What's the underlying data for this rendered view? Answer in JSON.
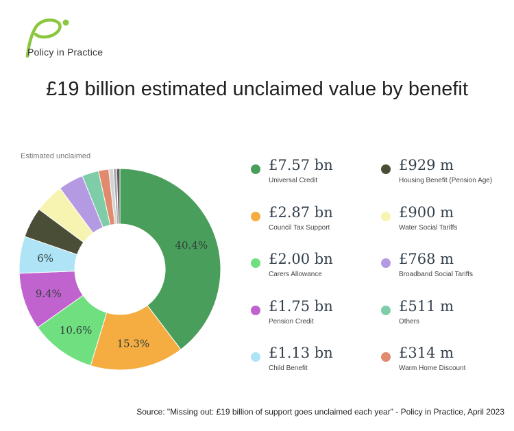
{
  "logo": {
    "text": "Policy in Practice"
  },
  "title": "£19 billion estimated unclaimed value by benefit",
  "source": "Source: \"Missing out: £19 billion of support goes unclaimed each year\" - Policy in Practice, April 2023",
  "chart_data": {
    "type": "pie",
    "subtitle": "Estimated unclaimed",
    "series": [
      {
        "name": "Universal Credit",
        "value_label": "£7.57 bn",
        "value": 7.57,
        "color": "#4a9e5c",
        "slice_label": "40.4%"
      },
      {
        "name": "Council Tax Support",
        "value_label": "£2.87 bn",
        "value": 2.87,
        "color": "#f5ad42",
        "slice_label": "15.3%"
      },
      {
        "name": "Carers Allowance",
        "value_label": "£2.00 bn",
        "value": 2.0,
        "color": "#6fdf7f",
        "slice_label": "10.6%"
      },
      {
        "name": "Pension Credit",
        "value_label": "£1.75 bn",
        "value": 1.75,
        "color": "#c163cf",
        "slice_label": "9.4%"
      },
      {
        "name": "Child Benefit",
        "value_label": "£1.13 bn",
        "value": 1.13,
        "color": "#aee4f5",
        "slice_label": "6%"
      },
      {
        "name": "Housing Benefit (Pension Age)",
        "value_label": "£929 m",
        "value": 0.929,
        "color": "#4a4e37",
        "slice_label": ""
      },
      {
        "name": "Water Social Tariffs",
        "value_label": "£900 m",
        "value": 0.9,
        "color": "#f7f4b2",
        "slice_label": ""
      },
      {
        "name": "Broadband Social Tariffs",
        "value_label": "£768 m",
        "value": 0.768,
        "color": "#b39ae3",
        "slice_label": ""
      },
      {
        "name": "Others",
        "value_label": "£511 m",
        "value": 0.511,
        "color": "#7fcda8",
        "slice_label": ""
      },
      {
        "name": "Warm Home Discount",
        "value_label": "£314 m",
        "value": 0.314,
        "color": "#e08a6e",
        "slice_label": ""
      }
    ],
    "extra_thin_slices": [
      {
        "value": 0.14,
        "color": "#d4d4d4"
      },
      {
        "value": 0.1,
        "color": "#a9a9a9"
      },
      {
        "value": 0.1,
        "color": "#5b5b5b"
      }
    ]
  }
}
